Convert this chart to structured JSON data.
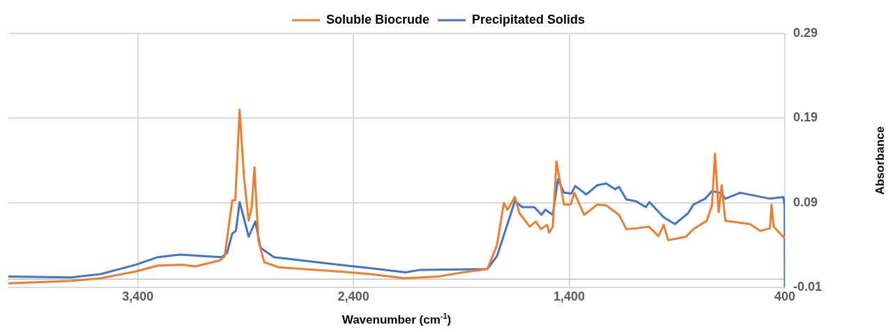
{
  "chart_data": {
    "type": "line",
    "xlabel": "Wavenumber (cm$^{-1}$)",
    "ylabel": "Absorbance",
    "xlim": [
      4000,
      400
    ],
    "xticks": [
      {
        "value": 3400,
        "label": "3,400"
      },
      {
        "value": 2400,
        "label": "2,400"
      },
      {
        "value": 1400,
        "label": "1,400"
      },
      400
    ],
    "ylim": [
      -0.01,
      0.29
    ],
    "yticks": [
      -0.01,
      0.09,
      0.19,
      0.29
    ],
    "grid": true,
    "legend": "top",
    "marker": "none",
    "line_style": "solid",
    "ref_lines": [
      {
        "axis": "y",
        "value": 0,
        "color": "#bfbfbf"
      }
    ],
    "series": [
      {
        "name": "Soluble Biocrude",
        "color": "#ed7d31",
        "x": [
          4000,
          3710,
          3572,
          3410,
          3307,
          3193,
          3134,
          3021,
          2997,
          2962,
          2948,
          2928,
          2907,
          2886,
          2872,
          2859,
          2841,
          2814,
          2745,
          2469,
          2321,
          2166,
          2010,
          1893,
          1779,
          1735,
          1703,
          1686,
          1652,
          1631,
          1583,
          1555,
          1531,
          1503,
          1493,
          1476,
          1459,
          1424,
          1393,
          1376,
          1331,
          1269,
          1228,
          1169,
          1135,
          1090,
          1031,
          986,
          962,
          941,
          859,
          824,
          762,
          738,
          724,
          707,
          693,
          676,
          562,
          514,
          469,
          462,
          452,
          400
        ],
        "values": [
          -0.005,
          -0.002,
          0.001,
          0.009,
          0.016,
          0.017,
          0.015,
          0.022,
          0.027,
          0.093,
          0.093,
          0.2,
          0.118,
          0.069,
          0.084,
          0.132,
          0.046,
          0.02,
          0.014,
          0.009,
          0.006,
          0.001,
          0.003,
          0.008,
          0.012,
          0.04,
          0.09,
          0.082,
          0.097,
          0.078,
          0.062,
          0.068,
          0.059,
          0.064,
          0.055,
          0.062,
          0.139,
          0.088,
          0.088,
          0.102,
          0.076,
          0.088,
          0.087,
          0.076,
          0.059,
          0.06,
          0.062,
          0.051,
          0.064,
          0.046,
          0.05,
          0.059,
          0.069,
          0.087,
          0.148,
          0.079,
          0.111,
          0.069,
          0.065,
          0.057,
          0.06,
          0.088,
          0.062,
          0.048
        ]
      },
      {
        "name": "Precipitated Solids",
        "color": "#4472c4",
        "x": [
          4000,
          3710,
          3572,
          3410,
          3307,
          3203,
          3079,
          3010,
          2986,
          2962,
          2945,
          2928,
          2907,
          2886,
          2855,
          2831,
          2769,
          2469,
          2321,
          2159,
          2090,
          1779,
          1735,
          1686,
          1652,
          1617,
          1562,
          1528,
          1510,
          1476,
          1452,
          1424,
          1390,
          1372,
          1321,
          1269,
          1228,
          1186,
          1169,
          1135,
          1090,
          1045,
          1028,
          962,
          910,
          848,
          824,
          769,
          738,
          700,
          676,
          607,
          469,
          407,
          401,
          400
        ],
        "values": [
          0.003,
          0.002,
          0.006,
          0.017,
          0.026,
          0.029,
          0.027,
          0.026,
          0.031,
          0.054,
          0.057,
          0.091,
          0.071,
          0.05,
          0.068,
          0.037,
          0.026,
          0.017,
          0.013,
          0.008,
          0.011,
          0.012,
          0.027,
          0.065,
          0.092,
          0.085,
          0.085,
          0.076,
          0.082,
          0.076,
          0.118,
          0.102,
          0.101,
          0.11,
          0.1,
          0.111,
          0.113,
          0.106,
          0.109,
          0.094,
          0.092,
          0.085,
          0.091,
          0.073,
          0.065,
          0.078,
          0.088,
          0.095,
          0.104,
          0.102,
          0.095,
          0.102,
          0.095,
          0.097,
          0.087,
          -0.01
        ]
      }
    ]
  }
}
